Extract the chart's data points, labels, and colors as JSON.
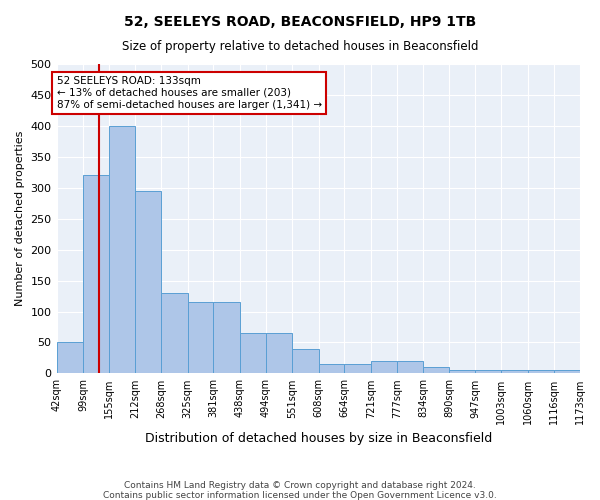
{
  "title1": "52, SEELEYS ROAD, BEACONSFIELD, HP9 1TB",
  "title2": "Size of property relative to detached houses in Beaconsfield",
  "xlabel": "Distribution of detached houses by size in Beaconsfield",
  "ylabel": "Number of detached properties",
  "footer1": "Contains HM Land Registry data © Crown copyright and database right 2024.",
  "footer2": "Contains public sector information licensed under the Open Government Licence v3.0.",
  "bin_edges": [
    42,
    99,
    155,
    212,
    268,
    325,
    381,
    438,
    494,
    551,
    608,
    664,
    721,
    777,
    834,
    890,
    947,
    1003,
    1060,
    1116,
    1173
  ],
  "bar_heights": [
    50,
    320,
    400,
    295,
    130,
    115,
    115,
    65,
    65,
    40,
    15,
    15,
    20,
    20,
    10,
    5,
    5,
    5,
    5,
    5
  ],
  "bar_facecolor": "#aec6e8",
  "bar_edgecolor": "#5a9fd4",
  "background_color": "#eaf0f8",
  "grid_color": "#ffffff",
  "property_size": 133,
  "red_line_color": "#cc0000",
  "annotation_text": "52 SEELEYS ROAD: 133sqm\n← 13% of detached houses are smaller (203)\n87% of semi-detached houses are larger (1,341) →",
  "annotation_box_edgecolor": "#cc0000",
  "annotation_box_facecolor": "#ffffff",
  "ylim": [
    0,
    500
  ],
  "yticks": [
    0,
    50,
    100,
    150,
    200,
    250,
    300,
    350,
    400,
    450,
    500
  ]
}
